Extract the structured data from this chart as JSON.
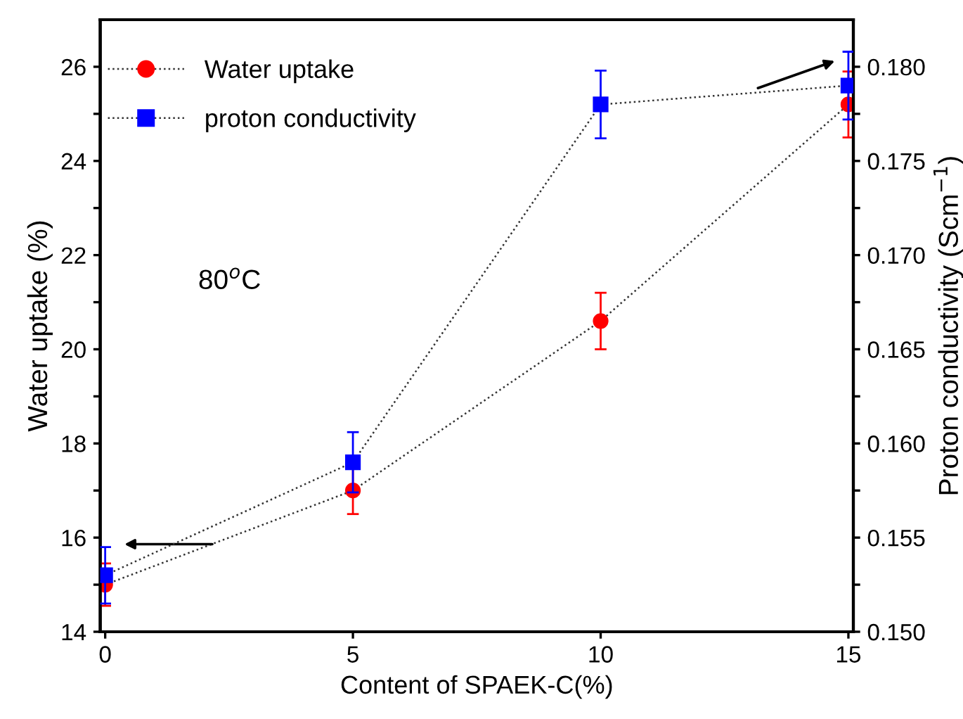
{
  "chart_data": {
    "type": "line",
    "xlabel": "Content of SPAEK-C(%)",
    "ylabel": "Water uptake (%)",
    "y2label": "Proton conductivity (Scm$^{−1}$)",
    "x": [
      0,
      5,
      10,
      15
    ],
    "series": [
      {
        "name": "Water uptake",
        "color": "#ff0000",
        "marker": "circle",
        "values": [
          15.0,
          17.0,
          20.6,
          25.2
        ],
        "errors": [
          0.45,
          0.5,
          0.6,
          0.7
        ]
      },
      {
        "name": "proton conductivity",
        "color": "#0000ff",
        "marker": "square",
        "axis": "y2",
        "values": [
          0.153,
          0.159,
          0.178,
          0.179
        ],
        "errors": [
          0.0015,
          0.0016,
          0.0018,
          0.0018
        ]
      }
    ],
    "line_style": "dotted",
    "legend": "top left",
    "grid": false,
    "annotations": [
      "80$^{o}$C"
    ],
    "xlim": [
      -0.1,
      15.1
    ],
    "xticks": [
      0,
      5,
      10,
      15
    ],
    "ylim": [
      14,
      27
    ],
    "yticks": [
      14,
      {
        "value": 15,
        "label": null
      },
      16,
      {
        "value": 17,
        "label": null
      },
      18,
      {
        "value": 19,
        "label": null
      },
      20,
      {
        "value": 21,
        "label": null
      },
      22,
      {
        "value": 23,
        "label": null
      },
      24,
      {
        "value": 25,
        "label": null
      },
      26
    ],
    "y2lim": [
      0.15,
      0.1825
    ],
    "y2ticks": [
      {
        "value": 0.15,
        "label": "0.150"
      },
      {
        "value": 0.1525,
        "label": null
      },
      {
        "value": 0.155,
        "label": "0.155"
      },
      {
        "value": 0.1575,
        "label": null
      },
      {
        "value": 0.16,
        "label": "0.160"
      },
      {
        "value": 0.1625,
        "label": null
      },
      {
        "value": 0.165,
        "label": "0.165"
      },
      {
        "value": 0.1675,
        "label": null
      },
      {
        "value": 0.17,
        "label": "0.170"
      },
      {
        "value": 0.1725,
        "label": null
      },
      {
        "value": 0.175,
        "label": "0.175"
      },
      {
        "value": 0.1775,
        "label": null
      },
      {
        "value": 0.18,
        "label": "0.180"
      }
    ]
  }
}
